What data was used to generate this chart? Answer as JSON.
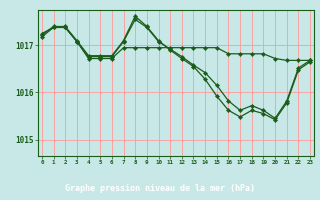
{
  "title": "Graphe pression niveau de la mer (hPa)",
  "bg_color": "#c8e8e8",
  "footer_bg": "#1a5c1a",
  "footer_text_color": "#ffffff",
  "grid_color": "#ff9999",
  "line_color": "#1a5c1a",
  "x_labels": [
    "0",
    "1",
    "2",
    "3",
    "4",
    "5",
    "6",
    "7",
    "8",
    "9",
    "10",
    "11",
    "12",
    "13",
    "14",
    "15",
    "16",
    "17",
    "18",
    "19",
    "20",
    "21",
    "22",
    "23"
  ],
  "yticks": [
    1015,
    1016,
    1017
  ],
  "ylim": [
    1014.65,
    1017.75
  ],
  "xlim": [
    -0.3,
    23.3
  ],
  "line1": [
    1017.18,
    1017.38,
    1017.38,
    1017.08,
    1016.76,
    1016.76,
    1016.76,
    1017.08,
    1017.55,
    1017.38,
    1017.08,
    1016.92,
    1016.76,
    1016.58,
    1016.42,
    1016.15,
    1015.82,
    1015.62,
    1015.72,
    1015.62,
    1015.45,
    1015.82,
    1016.52,
    1016.68
  ],
  "line2": [
    1017.25,
    1017.38,
    1017.38,
    1017.08,
    1016.72,
    1016.72,
    1016.72,
    1016.95,
    1016.95,
    1016.95,
    1016.95,
    1016.95,
    1016.95,
    1016.95,
    1016.95,
    1016.95,
    1016.82,
    1016.82,
    1016.82,
    1016.82,
    1016.72,
    1016.68,
    1016.68,
    1016.68
  ],
  "line3": [
    1017.22,
    1017.4,
    1017.4,
    1017.1,
    1016.78,
    1016.78,
    1016.78,
    1017.1,
    1017.62,
    1017.4,
    1017.1,
    1016.9,
    1016.72,
    1016.55,
    1016.28,
    1015.92,
    1015.62,
    1015.48,
    1015.62,
    1015.55,
    1015.42,
    1015.78,
    1016.48,
    1016.65
  ]
}
